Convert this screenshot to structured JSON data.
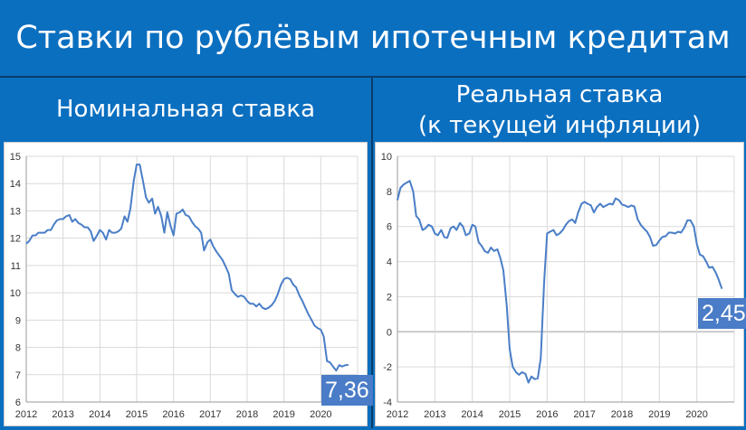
{
  "header": {
    "title": "Ставки по рублёвым ипотечным кредитам"
  },
  "panels": {
    "left": {
      "title": "Номинальная ставка",
      "last_value": "7,36"
    },
    "right": {
      "title_line1": "Реальная ставка",
      "title_line2": "(к текущей инфляции)",
      "last_value": "2,45"
    }
  },
  "colors": {
    "background": "#0b6fc0",
    "line": "#4a7ec7",
    "grid": "#d9d9d9",
    "tag": "#4a7cc7"
  },
  "chart_data": [
    {
      "type": "line",
      "title": "Номинальная ставка",
      "xlim": [
        2012,
        2021
      ],
      "ylim": [
        6,
        15
      ],
      "x_ticks": [
        "2012",
        "2013",
        "2014",
        "2015",
        "2016",
        "2017",
        "2018",
        "2019",
        "2020"
      ],
      "y_ticks": [
        "6",
        "7",
        "8",
        "9",
        "10",
        "11",
        "12",
        "13",
        "14",
        "15"
      ],
      "grid": true,
      "series": [
        {
          "points": [
            [
              2012.0,
              11.8
            ],
            [
              2012.08,
              11.9
            ],
            [
              2012.17,
              12.1
            ],
            [
              2012.25,
              12.1
            ],
            [
              2012.33,
              12.2
            ],
            [
              2012.42,
              12.2
            ],
            [
              2012.5,
              12.2
            ],
            [
              2012.58,
              12.3
            ],
            [
              2012.67,
              12.3
            ],
            [
              2012.75,
              12.5
            ],
            [
              2012.83,
              12.65
            ],
            [
              2012.92,
              12.7
            ],
            [
              2013.0,
              12.7
            ],
            [
              2013.08,
              12.8
            ],
            [
              2013.17,
              12.85
            ],
            [
              2013.25,
              12.6
            ],
            [
              2013.33,
              12.7
            ],
            [
              2013.42,
              12.55
            ],
            [
              2013.5,
              12.5
            ],
            [
              2013.58,
              12.4
            ],
            [
              2013.67,
              12.4
            ],
            [
              2013.75,
              12.25
            ],
            [
              2013.83,
              11.9
            ],
            [
              2013.92,
              12.1
            ],
            [
              2014.0,
              12.3
            ],
            [
              2014.08,
              12.2
            ],
            [
              2014.17,
              11.95
            ],
            [
              2014.25,
              12.3
            ],
            [
              2014.33,
              12.2
            ],
            [
              2014.42,
              12.2
            ],
            [
              2014.5,
              12.25
            ],
            [
              2014.58,
              12.35
            ],
            [
              2014.67,
              12.8
            ],
            [
              2014.75,
              12.6
            ],
            [
              2014.83,
              13.1
            ],
            [
              2014.92,
              14.1
            ],
            [
              2015.0,
              14.7
            ],
            [
              2015.08,
              14.7
            ],
            [
              2015.17,
              14.1
            ],
            [
              2015.25,
              13.5
            ],
            [
              2015.33,
              13.3
            ],
            [
              2015.42,
              13.45
            ],
            [
              2015.5,
              12.9
            ],
            [
              2015.58,
              13.15
            ],
            [
              2015.67,
              12.8
            ],
            [
              2015.75,
              12.2
            ],
            [
              2015.83,
              12.95
            ],
            [
              2015.92,
              12.45
            ],
            [
              2016.0,
              12.1
            ],
            [
              2016.08,
              12.9
            ],
            [
              2016.17,
              12.95
            ],
            [
              2016.25,
              13.05
            ],
            [
              2016.33,
              12.85
            ],
            [
              2016.42,
              12.8
            ],
            [
              2016.5,
              12.6
            ],
            [
              2016.58,
              12.45
            ],
            [
              2016.67,
              12.35
            ],
            [
              2016.75,
              12.2
            ],
            [
              2016.83,
              11.55
            ],
            [
              2016.92,
              11.85
            ],
            [
              2017.0,
              11.95
            ],
            [
              2017.08,
              11.7
            ],
            [
              2017.17,
              11.5
            ],
            [
              2017.25,
              11.35
            ],
            [
              2017.33,
              11.2
            ],
            [
              2017.42,
              10.95
            ],
            [
              2017.5,
              10.7
            ],
            [
              2017.58,
              10.1
            ],
            [
              2017.67,
              9.95
            ],
            [
              2017.75,
              9.85
            ],
            [
              2017.83,
              9.9
            ],
            [
              2017.92,
              9.85
            ],
            [
              2018.0,
              9.7
            ],
            [
              2018.08,
              9.6
            ],
            [
              2018.17,
              9.6
            ],
            [
              2018.25,
              9.5
            ],
            [
              2018.33,
              9.6
            ],
            [
              2018.42,
              9.45
            ],
            [
              2018.5,
              9.4
            ],
            [
              2018.58,
              9.45
            ],
            [
              2018.67,
              9.55
            ],
            [
              2018.75,
              9.7
            ],
            [
              2018.83,
              9.95
            ],
            [
              2018.92,
              10.3
            ],
            [
              2019.0,
              10.5
            ],
            [
              2019.08,
              10.55
            ],
            [
              2019.17,
              10.5
            ],
            [
              2019.25,
              10.3
            ],
            [
              2019.33,
              10.2
            ],
            [
              2019.42,
              9.9
            ],
            [
              2019.5,
              9.7
            ],
            [
              2019.58,
              9.45
            ],
            [
              2019.67,
              9.2
            ],
            [
              2019.75,
              9.0
            ],
            [
              2019.83,
              8.8
            ],
            [
              2019.92,
              8.7
            ],
            [
              2020.0,
              8.65
            ],
            [
              2020.08,
              8.4
            ],
            [
              2020.17,
              7.5
            ],
            [
              2020.25,
              7.45
            ],
            [
              2020.33,
              7.3
            ],
            [
              2020.42,
              7.15
            ],
            [
              2020.5,
              7.35
            ],
            [
              2020.58,
              7.3
            ],
            [
              2020.67,
              7.35
            ],
            [
              2020.75,
              7.36
            ]
          ]
        }
      ]
    },
    {
      "type": "line",
      "title": "Реальная ставка (к текущей инфляции)",
      "xlim": [
        2012,
        2021
      ],
      "ylim": [
        -4,
        10
      ],
      "x_ticks": [
        "2012",
        "2013",
        "2014",
        "2015",
        "2016",
        "2017",
        "2018",
        "2019",
        "2020"
      ],
      "y_ticks": [
        "-4",
        "-2",
        "0",
        "2",
        "4",
        "6",
        "8",
        "10"
      ],
      "grid": true,
      "series": [
        {
          "points": [
            [
              2012.0,
              7.5
            ],
            [
              2012.08,
              8.2
            ],
            [
              2012.17,
              8.4
            ],
            [
              2012.25,
              8.5
            ],
            [
              2012.33,
              8.6
            ],
            [
              2012.42,
              8.0
            ],
            [
              2012.5,
              6.6
            ],
            [
              2012.58,
              6.4
            ],
            [
              2012.67,
              5.8
            ],
            [
              2012.75,
              5.9
            ],
            [
              2012.83,
              6.1
            ],
            [
              2012.92,
              6.0
            ],
            [
              2013.0,
              5.6
            ],
            [
              2013.08,
              5.5
            ],
            [
              2013.17,
              5.8
            ],
            [
              2013.25,
              5.4
            ],
            [
              2013.33,
              5.35
            ],
            [
              2013.42,
              5.9
            ],
            [
              2013.5,
              6.0
            ],
            [
              2013.58,
              5.8
            ],
            [
              2013.67,
              6.2
            ],
            [
              2013.75,
              6.0
            ],
            [
              2013.83,
              5.5
            ],
            [
              2013.92,
              5.6
            ],
            [
              2014.0,
              6.1
            ],
            [
              2014.08,
              6.0
            ],
            [
              2014.17,
              5.1
            ],
            [
              2014.25,
              4.9
            ],
            [
              2014.33,
              4.6
            ],
            [
              2014.42,
              4.5
            ],
            [
              2014.5,
              4.8
            ],
            [
              2014.58,
              4.6
            ],
            [
              2014.67,
              4.7
            ],
            [
              2014.75,
              4.2
            ],
            [
              2014.83,
              3.5
            ],
            [
              2014.92,
              1.5
            ],
            [
              2015.0,
              -1.0
            ],
            [
              2015.08,
              -2.0
            ],
            [
              2015.17,
              -2.3
            ],
            [
              2015.25,
              -2.45
            ],
            [
              2015.33,
              -2.3
            ],
            [
              2015.42,
              -2.4
            ],
            [
              2015.5,
              -2.9
            ],
            [
              2015.58,
              -2.55
            ],
            [
              2015.67,
              -2.7
            ],
            [
              2015.75,
              -2.65
            ],
            [
              2015.83,
              -1.5
            ],
            [
              2015.92,
              2.8
            ],
            [
              2016.0,
              5.6
            ],
            [
              2016.08,
              5.7
            ],
            [
              2016.17,
              5.8
            ],
            [
              2016.25,
              5.5
            ],
            [
              2016.33,
              5.6
            ],
            [
              2016.42,
              5.8
            ],
            [
              2016.5,
              6.1
            ],
            [
              2016.58,
              6.3
            ],
            [
              2016.67,
              6.4
            ],
            [
              2016.75,
              6.2
            ],
            [
              2016.83,
              6.8
            ],
            [
              2016.92,
              7.3
            ],
            [
              2017.0,
              7.4
            ],
            [
              2017.08,
              7.3
            ],
            [
              2017.17,
              7.2
            ],
            [
              2017.25,
              6.8
            ],
            [
              2017.33,
              7.1
            ],
            [
              2017.42,
              7.3
            ],
            [
              2017.5,
              7.1
            ],
            [
              2017.58,
              7.2
            ],
            [
              2017.67,
              7.3
            ],
            [
              2017.75,
              7.25
            ],
            [
              2017.83,
              7.6
            ],
            [
              2017.92,
              7.5
            ],
            [
              2018.0,
              7.25
            ],
            [
              2018.08,
              7.2
            ],
            [
              2018.17,
              7.1
            ],
            [
              2018.25,
              7.2
            ],
            [
              2018.33,
              7.15
            ],
            [
              2018.42,
              6.4
            ],
            [
              2018.5,
              6.1
            ],
            [
              2018.58,
              5.9
            ],
            [
              2018.67,
              5.7
            ],
            [
              2018.75,
              5.4
            ],
            [
              2018.83,
              4.9
            ],
            [
              2018.92,
              4.95
            ],
            [
              2019.0,
              5.2
            ],
            [
              2019.08,
              5.4
            ],
            [
              2019.17,
              5.45
            ],
            [
              2019.25,
              5.65
            ],
            [
              2019.33,
              5.65
            ],
            [
              2019.42,
              5.6
            ],
            [
              2019.5,
              5.7
            ],
            [
              2019.58,
              5.65
            ],
            [
              2019.67,
              5.95
            ],
            [
              2019.75,
              6.35
            ],
            [
              2019.83,
              6.35
            ],
            [
              2019.92,
              6.0
            ],
            [
              2020.0,
              5.0
            ],
            [
              2020.08,
              4.4
            ],
            [
              2020.17,
              4.3
            ],
            [
              2020.25,
              4.0
            ],
            [
              2020.33,
              3.65
            ],
            [
              2020.42,
              3.7
            ],
            [
              2020.5,
              3.4
            ],
            [
              2020.58,
              3.0
            ],
            [
              2020.67,
              2.45
            ]
          ]
        }
      ]
    }
  ]
}
